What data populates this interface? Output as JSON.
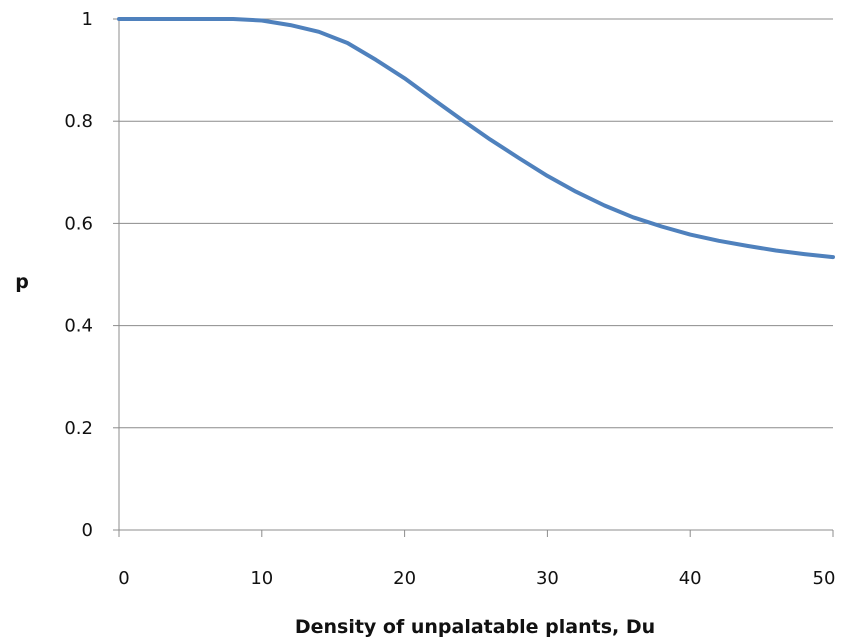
{
  "chart_data": {
    "type": "line",
    "title": "",
    "xlabel": "Density of unpalatable plants, Du",
    "ylabel": "p",
    "xlim": [
      0,
      50
    ],
    "ylim": [
      0,
      1
    ],
    "xticks": [
      0,
      10,
      20,
      30,
      40,
      50
    ],
    "yticks": [
      0,
      0.2,
      0.4,
      0.6,
      0.8,
      1
    ],
    "xtick_labels": [
      "0",
      "10",
      "20",
      "30",
      "40",
      "50"
    ],
    "ytick_labels": [
      "0",
      "0.2",
      "0.4",
      "0.6",
      "0.8",
      "1"
    ],
    "grid": "horizontal",
    "legend": "none",
    "series": [
      {
        "color": "#4f81bd",
        "x": [
          0,
          2,
          4,
          6,
          8,
          10,
          12,
          14,
          16,
          18,
          20,
          22,
          24,
          26,
          28,
          30,
          32,
          34,
          36,
          38,
          40,
          42,
          44,
          46,
          48,
          50
        ],
        "y": [
          1.0,
          1.0,
          1.0,
          1.0,
          1.0,
          0.997,
          0.988,
          0.975,
          0.953,
          0.92,
          0.884,
          0.843,
          0.803,
          0.764,
          0.728,
          0.693,
          0.662,
          0.635,
          0.612,
          0.594,
          0.578,
          0.566,
          0.556,
          0.547,
          0.54,
          0.534
        ]
      }
    ]
  }
}
